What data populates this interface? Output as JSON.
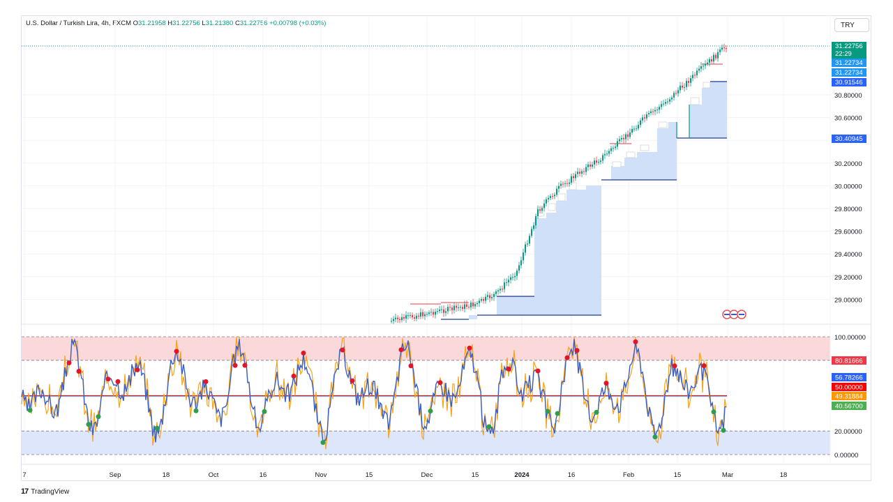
{
  "header": {
    "symbol": "U.S. Dollar / Turkish Lira, 4h, FXCM",
    "ohlc": {
      "o_label": "O",
      "o": "31.21958",
      "h_label": "H",
      "h": "31.22756",
      "l_label": "L",
      "l": "31.21380",
      "c_label": "C",
      "c": "31.22756",
      "change": "+0.00798 (+0.03%)"
    },
    "currency": "TRY"
  },
  "footer": {
    "brand": "TradingView",
    "brand_mark": "17"
  },
  "colors": {
    "up": "#089981",
    "down": "#f23645",
    "fill_blue": "#c9daf8",
    "step_line": "#089981",
    "osc_blue": "#3b5fc0",
    "osc_orange": "#f7a21b",
    "band_red": "#fbd9db",
    "band_blue": "#dde6fb"
  },
  "chart_data": [
    {
      "type": "candlestick",
      "title": "",
      "y_ticks": [
        "30.80000",
        "30.60000",
        "30.40000",
        "30.20000",
        "30.00000",
        "29.80000",
        "29.60000",
        "29.40000",
        "29.20000",
        "29.00000"
      ],
      "ylim": [
        28.85,
        31.32
      ],
      "price_labels": [
        {
          "value": "31.22756",
          "sub": "22:29",
          "color": "#089981"
        },
        {
          "value": "31.22734",
          "color": "#2196f3"
        },
        {
          "value": "31.22734",
          "color": "#2196f3"
        },
        {
          "value": "30.91546",
          "color": "#2962ff"
        },
        {
          "value": "30.40945",
          "color": "#2962ff"
        }
      ],
      "series": [
        {
          "name": "",
          "x": [
            "2023-11-25",
            "2023-12-03",
            "2023-12-10",
            "2023-12-15",
            "2023-12-20",
            "2023-12-27",
            "2024-01-03",
            "2024-01-10",
            "2024-01-17",
            "2024-01-24",
            "2024-01-31",
            "2024-02-07",
            "2024-02-14",
            "2024-02-21",
            "2024-02-28"
          ],
          "y": [
            28.81,
            28.88,
            28.92,
            28.96,
            29.05,
            29.25,
            29.78,
            29.98,
            30.12,
            30.24,
            30.4,
            30.58,
            30.72,
            30.92,
            31.23
          ]
        }
      ],
      "step_levels": [
        {
          "y": [
            28.85,
            29.02,
            29.69,
            29.98,
            30.05,
            30.34,
            30.52,
            30.72
          ],
          "filled": true
        }
      ]
    },
    {
      "type": "line",
      "title": "",
      "y_ticks": [
        "100.00000",
        "20.00000",
        "0.00000"
      ],
      "ylim": [
        0,
        100
      ],
      "levels": [
        80,
        50,
        20
      ],
      "value_labels": [
        {
          "value": "80.81666",
          "color": "#f23645"
        },
        {
          "value": "56.78266",
          "color": "#2962ff"
        },
        {
          "value": "50.00000",
          "color": "#ff0000"
        },
        {
          "value": "49.31884",
          "color": "#ff9800"
        },
        {
          "value": "40.56700",
          "color": "#4caf50"
        }
      ]
    }
  ],
  "x_ticks": [
    "7",
    "Sep",
    "18",
    "Oct",
    "16",
    "Nov",
    "15",
    "Dec",
    "15",
    "2024",
    "16",
    "Feb",
    "15",
    "Mar",
    "18"
  ]
}
